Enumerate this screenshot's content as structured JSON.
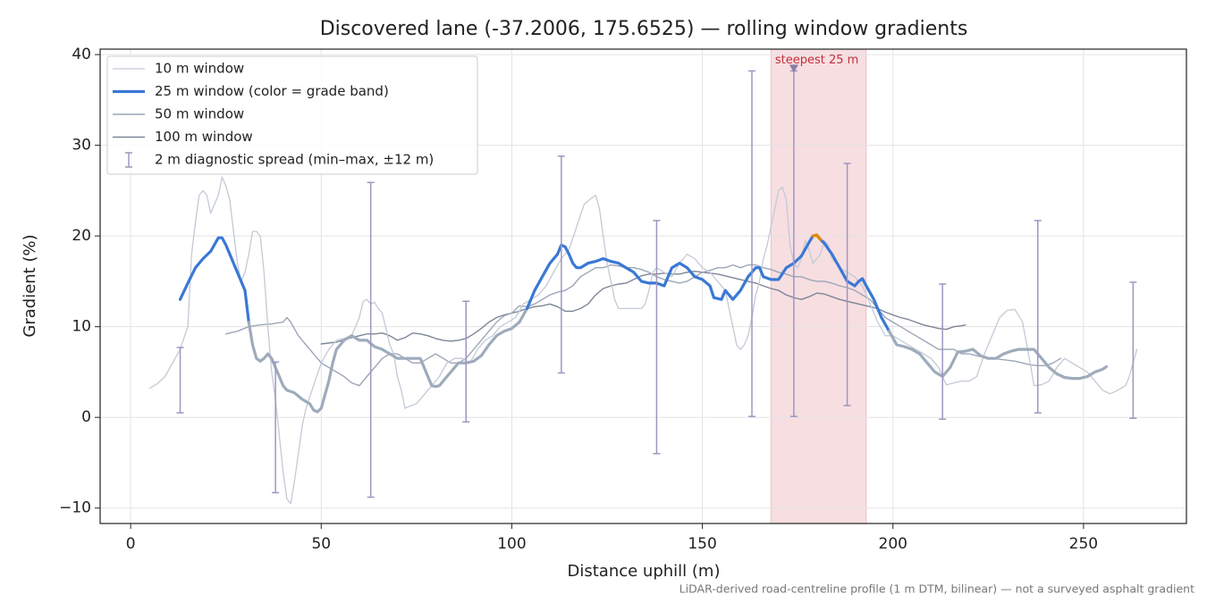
{
  "chart_data": {
    "type": "line",
    "title": "Discovered lane (-37.2006, 175.6525) — rolling window gradients",
    "x_label": "Distance uphill (m)",
    "y_label": "Gradient (%)",
    "footnote": "LiDAR-derived road-centreline profile (1 m DTM, bilinear) — not a surveyed asphalt gradient",
    "xlim": [
      -8,
      277
    ],
    "ylim": [
      -11.7,
      40.6
    ],
    "xticks": [
      0,
      50,
      100,
      150,
      200,
      250
    ],
    "yticks": [
      {
        "value": -10,
        "label": "−10"
      },
      0,
      10,
      20,
      30,
      40
    ],
    "grid": true,
    "legend": "upper left",
    "series": [
      {
        "name": "10 m window",
        "color": "#c3cad6",
        "x": [
          5,
          7,
          9,
          11,
          13,
          15,
          16,
          17,
          18,
          19,
          20,
          21,
          22,
          23,
          24,
          25,
          26,
          27,
          28,
          29,
          30,
          31,
          32,
          33,
          34,
          35,
          36,
          37,
          38,
          39,
          40,
          41,
          42,
          43,
          44,
          45,
          46,
          48,
          50,
          52,
          54,
          56,
          58,
          59,
          60,
          61,
          62,
          63,
          64,
          65,
          66,
          67,
          68,
          69,
          70,
          71,
          72,
          73,
          75,
          77,
          79,
          81,
          83,
          85,
          87,
          89,
          91,
          93,
          95,
          97,
          99,
          101,
          103,
          105,
          107,
          109,
          111,
          113,
          115,
          117,
          119,
          121,
          122,
          123,
          124,
          125,
          126,
          127,
          128,
          130,
          132,
          134,
          135,
          136,
          137,
          138,
          140,
          142,
          144,
          146,
          148,
          150,
          152,
          154,
          156,
          157,
          158,
          159,
          160,
          161,
          162,
          163,
          164,
          165,
          166,
          167,
          168,
          169,
          170,
          171,
          172,
          173,
          174,
          175,
          176,
          177,
          178,
          179,
          180,
          181,
          182,
          183,
          184,
          186,
          188,
          190,
          192,
          194,
          196,
          198,
          200,
          202,
          204,
          206,
          208,
          210,
          212,
          213,
          214,
          216,
          218,
          220,
          222,
          224,
          226,
          228,
          230,
          232,
          234,
          236,
          237,
          239,
          241,
          243,
          245,
          247,
          249,
          251,
          253,
          255,
          257,
          259,
          261,
          262,
          263,
          264
        ],
        "values": [
          3.2,
          3.7,
          4.5,
          6,
          7.5,
          10,
          18,
          21.5,
          24.5,
          25,
          24.5,
          22.5,
          23.5,
          24.5,
          26.5,
          25.5,
          24,
          20.5,
          17,
          15,
          16,
          18,
          20.5,
          20.5,
          20,
          16,
          10,
          5,
          2,
          -2,
          -6,
          -9,
          -9.5,
          -7,
          -4,
          -1,
          1,
          3.5,
          6,
          7.5,
          8.5,
          8.7,
          9,
          10,
          11,
          12.8,
          13,
          12.5,
          12.7,
          12,
          11.5,
          9.8,
          8,
          7,
          4.5,
          3,
          1,
          1.2,
          1.5,
          2.5,
          3.5,
          4.5,
          6,
          6.5,
          6.5,
          6,
          7.5,
          8.5,
          9,
          10,
          10.5,
          11,
          12.5,
          13,
          13.5,
          14.5,
          16,
          17.5,
          18.5,
          21,
          23.5,
          24.2,
          24.5,
          23,
          20,
          17,
          15,
          13,
          12,
          12,
          12,
          12,
          12.5,
          14,
          16,
          16.5,
          16,
          15.5,
          17,
          18,
          17.5,
          16.5,
          16,
          15,
          14,
          12,
          10,
          8,
          7.5,
          8,
          9,
          11,
          13.5,
          15,
          17.5,
          19,
          21,
          23,
          25,
          25.4,
          24,
          19,
          17,
          16.5,
          17.5,
          19.5,
          18.5,
          17,
          17.5,
          18,
          19.5,
          19,
          17.5,
          16.5,
          16,
          15.5,
          14.5,
          12.5,
          10.5,
          9,
          9,
          8.5,
          8,
          7.5,
          7,
          6.5,
          5.5,
          4.5,
          3.6,
          3.8,
          4,
          4,
          4.5,
          7,
          9,
          11,
          11.8,
          11.9,
          10.5,
          6,
          3.5,
          3.6,
          4,
          5.5,
          6.5,
          6,
          5.5,
          5,
          4,
          3,
          2.6,
          3,
          3.5,
          4.5,
          6,
          7.5
        ]
      },
      {
        "name": "25 m window (color = grade band)",
        "color": "#3a78d4",
        "x": [
          13,
          15,
          17,
          19,
          21,
          23,
          24,
          25,
          27,
          29,
          30,
          31,
          32,
          33,
          34,
          35,
          36,
          37,
          38,
          39,
          40,
          41,
          43,
          45,
          47,
          48,
          49,
          50,
          51,
          52,
          53,
          54,
          56,
          58,
          60,
          62,
          64,
          66,
          68,
          70,
          72,
          74,
          76,
          77,
          78,
          79,
          80,
          81,
          83,
          85,
          86,
          88,
          90,
          92,
          94,
          96,
          98,
          100,
          102,
          104,
          106,
          108,
          110,
          112,
          113,
          114,
          115,
          116,
          117,
          118,
          120,
          122,
          124,
          126,
          128,
          130,
          132,
          134,
          136,
          138,
          140,
          141,
          142,
          144,
          146,
          148,
          150,
          152,
          153,
          155,
          156,
          158,
          160,
          162,
          164,
          165,
          166,
          168,
          170,
          172,
          174,
          176,
          178,
          179,
          180,
          181,
          182,
          184,
          186,
          188,
          190,
          191,
          192,
          193,
          195,
          197,
          199,
          201,
          203,
          205,
          207,
          209,
          211,
          213,
          215,
          217,
          219,
          221,
          223,
          225,
          227,
          229,
          231,
          233,
          235,
          237,
          239,
          241,
          243,
          245,
          247,
          249,
          251,
          253,
          255,
          256
        ],
        "values": [
          13,
          14.8,
          16.5,
          17.5,
          18.3,
          19.8,
          19.8,
          19,
          17,
          15,
          14,
          10.5,
          8,
          6.5,
          6.2,
          6.5,
          7,
          6.5,
          5.5,
          4.5,
          3.5,
          3,
          2.7,
          2,
          1.5,
          0.8,
          0.6,
          1,
          2.5,
          4,
          6,
          7.5,
          8.5,
          9,
          8.5,
          8.5,
          7.8,
          7.5,
          7,
          6.5,
          6.5,
          6.5,
          6.5,
          5.5,
          4.5,
          3.5,
          3.4,
          3.5,
          4.5,
          5.5,
          6,
          6,
          6.2,
          6.8,
          8,
          9,
          9.5,
          9.8,
          10.5,
          12,
          14,
          15.5,
          17,
          18,
          19,
          18.8,
          18,
          17,
          16.5,
          16.5,
          17,
          17.2,
          17.5,
          17.2,
          17,
          16.5,
          16,
          15,
          14.8,
          14.8,
          14.5,
          15.5,
          16.5,
          17,
          16.5,
          15.5,
          15.2,
          14.5,
          13.2,
          13,
          14,
          13,
          14,
          15.5,
          16.5,
          16.5,
          15.5,
          15.2,
          15.2,
          16.5,
          17,
          17.8,
          19.3,
          20,
          20.1,
          19.6,
          19.2,
          18,
          16.5,
          15,
          14.5,
          15,
          15.3,
          14.5,
          13,
          11,
          9.5,
          8,
          7.8,
          7.5,
          7,
          6,
          5,
          4.5,
          5.5,
          7.2,
          7.3,
          7.5,
          6.8,
          6.5,
          6.5,
          7,
          7.3,
          7.5,
          7.5,
          7.5,
          6.5,
          5.5,
          4.8,
          4.4,
          4.3,
          4.3,
          4.5,
          5,
          5.3,
          5.6
        ],
        "grade_bands": [
          {
            "below": 11,
            "color": "#9eabbb"
          },
          {
            "below": 100,
            "color": "#3a78d4"
          }
        ],
        "peak_color": "#e08a00"
      },
      {
        "name": "50 m window",
        "color": "#9ca6b8",
        "x": [
          25,
          28,
          31,
          34,
          37,
          40,
          41,
          42,
          44,
          46,
          48,
          50,
          52,
          54,
          56,
          58,
          60,
          62,
          64,
          66,
          68,
          70,
          72,
          74,
          76,
          78,
          80,
          82,
          84,
          86,
          88,
          90,
          92,
          94,
          96,
          98,
          100,
          102,
          104,
          106,
          108,
          110,
          112,
          114,
          116,
          118,
          120,
          122,
          124,
          126,
          128,
          130,
          132,
          134,
          136,
          138,
          140,
          142,
          144,
          146,
          148,
          150,
          152,
          154,
          156,
          158,
          160,
          162,
          164,
          166,
          168,
          170,
          172,
          174,
          176,
          178,
          180,
          182,
          184,
          186,
          188,
          190,
          192,
          194,
          196,
          198,
          200,
          202,
          204,
          206,
          208,
          210,
          212,
          214,
          216,
          218,
          220,
          222,
          224,
          226,
          228,
          230,
          232,
          234,
          236,
          238,
          240,
          242,
          244
        ],
        "values": [
          9.2,
          9.5,
          10,
          10.2,
          10.3,
          10.5,
          11,
          10.5,
          9,
          8,
          7,
          6,
          5.5,
          5,
          4.5,
          3.8,
          3.5,
          4.5,
          5.5,
          6.5,
          7,
          7,
          6.5,
          6,
          6,
          6.5,
          7,
          6.5,
          6,
          6,
          6.5,
          7.5,
          8.5,
          9.5,
          10.5,
          11.2,
          11.5,
          12.3,
          12.2,
          12.5,
          13,
          13.5,
          13.8,
          14,
          14.5,
          15.5,
          16,
          16.5,
          16.5,
          16.8,
          16.7,
          16.5,
          16.5,
          16.3,
          16,
          15.5,
          15.2,
          15,
          14.8,
          15,
          15.5,
          16,
          16.2,
          16.5,
          16.5,
          16.8,
          16.5,
          16.8,
          16.8,
          16.5,
          16.3,
          16,
          15.8,
          15.5,
          15.5,
          15.2,
          15,
          15,
          14.8,
          14.5,
          14.3,
          14,
          13.5,
          13,
          12,
          11,
          10.5,
          10,
          9.5,
          9,
          8.5,
          8,
          7.5,
          7.5,
          7.5,
          7,
          7,
          6.8,
          6.6,
          6.5,
          6.4,
          6.3,
          6.2,
          6,
          5.8,
          5.7,
          5.7,
          6,
          6.5
        ]
      },
      {
        "name": "100 m window",
        "color": "#7d8597",
        "x": [
          50,
          54,
          58,
          60,
          62,
          64,
          66,
          68,
          70,
          72,
          74,
          76,
          78,
          80,
          82,
          84,
          86,
          88,
          90,
          92,
          94,
          96,
          98,
          100,
          102,
          104,
          106,
          108,
          110,
          112,
          114,
          116,
          118,
          120,
          122,
          124,
          126,
          128,
          130,
          132,
          134,
          136,
          138,
          140,
          142,
          144,
          146,
          148,
          150,
          152,
          154,
          156,
          158,
          160,
          162,
          164,
          166,
          168,
          170,
          172,
          174,
          176,
          178,
          180,
          182,
          184,
          186,
          188,
          190,
          192,
          194,
          196,
          198,
          200,
          202,
          204,
          206,
          208,
          210,
          212,
          214,
          216,
          218,
          219
        ],
        "values": [
          8.1,
          8.3,
          8.8,
          9,
          9.2,
          9.2,
          9.3,
          9,
          8.5,
          8.8,
          9.3,
          9.2,
          9,
          8.7,
          8.5,
          8.4,
          8.5,
          8.7,
          9.2,
          9.8,
          10.5,
          11,
          11.3,
          11.5,
          11.7,
          12,
          12.2,
          12.3,
          12.5,
          12.2,
          11.7,
          11.7,
          12,
          12.5,
          13.5,
          14.2,
          14.5,
          14.7,
          14.8,
          15.2,
          15.6,
          15.8,
          15.8,
          15.9,
          15.8,
          15.8,
          16,
          16.1,
          16,
          15.9,
          15.8,
          15.6,
          15.4,
          15.2,
          15,
          14.8,
          14.5,
          14.2,
          14,
          13.5,
          13.2,
          13,
          13.3,
          13.7,
          13.6,
          13.3,
          13,
          12.8,
          12.6,
          12.4,
          12.2,
          12,
          11.6,
          11.3,
          11,
          10.8,
          10.5,
          10.2,
          10,
          9.8,
          9.7,
          10,
          10.1,
          10.2
        ]
      }
    ],
    "error_bars": {
      "name": "2 m diagnostic spread (min–max, ±12 m)",
      "color": "#9d97c0",
      "x": [
        13,
        38,
        63,
        88,
        113,
        138,
        163,
        174,
        188,
        213,
        238,
        263
      ],
      "low": [
        0.5,
        -8.3,
        -8.8,
        -0.5,
        4.9,
        -4.0,
        0.1,
        0.1,
        1.3,
        -0.2,
        0.5,
        -0.1
      ],
      "high": [
        7.7,
        6.1,
        25.9,
        12.8,
        28.8,
        21.7,
        38.2,
        38.2,
        28.0,
        14.7,
        21.7,
        14.9
      ]
    },
    "highlight": {
      "x_range": [
        168,
        193
      ],
      "color": "#e8a0a8",
      "label": "steepest 25 m",
      "label_color": "#c0303c",
      "marker_x": 174,
      "marker_y": 38.4,
      "marker_color": "#8b7fa8"
    }
  }
}
